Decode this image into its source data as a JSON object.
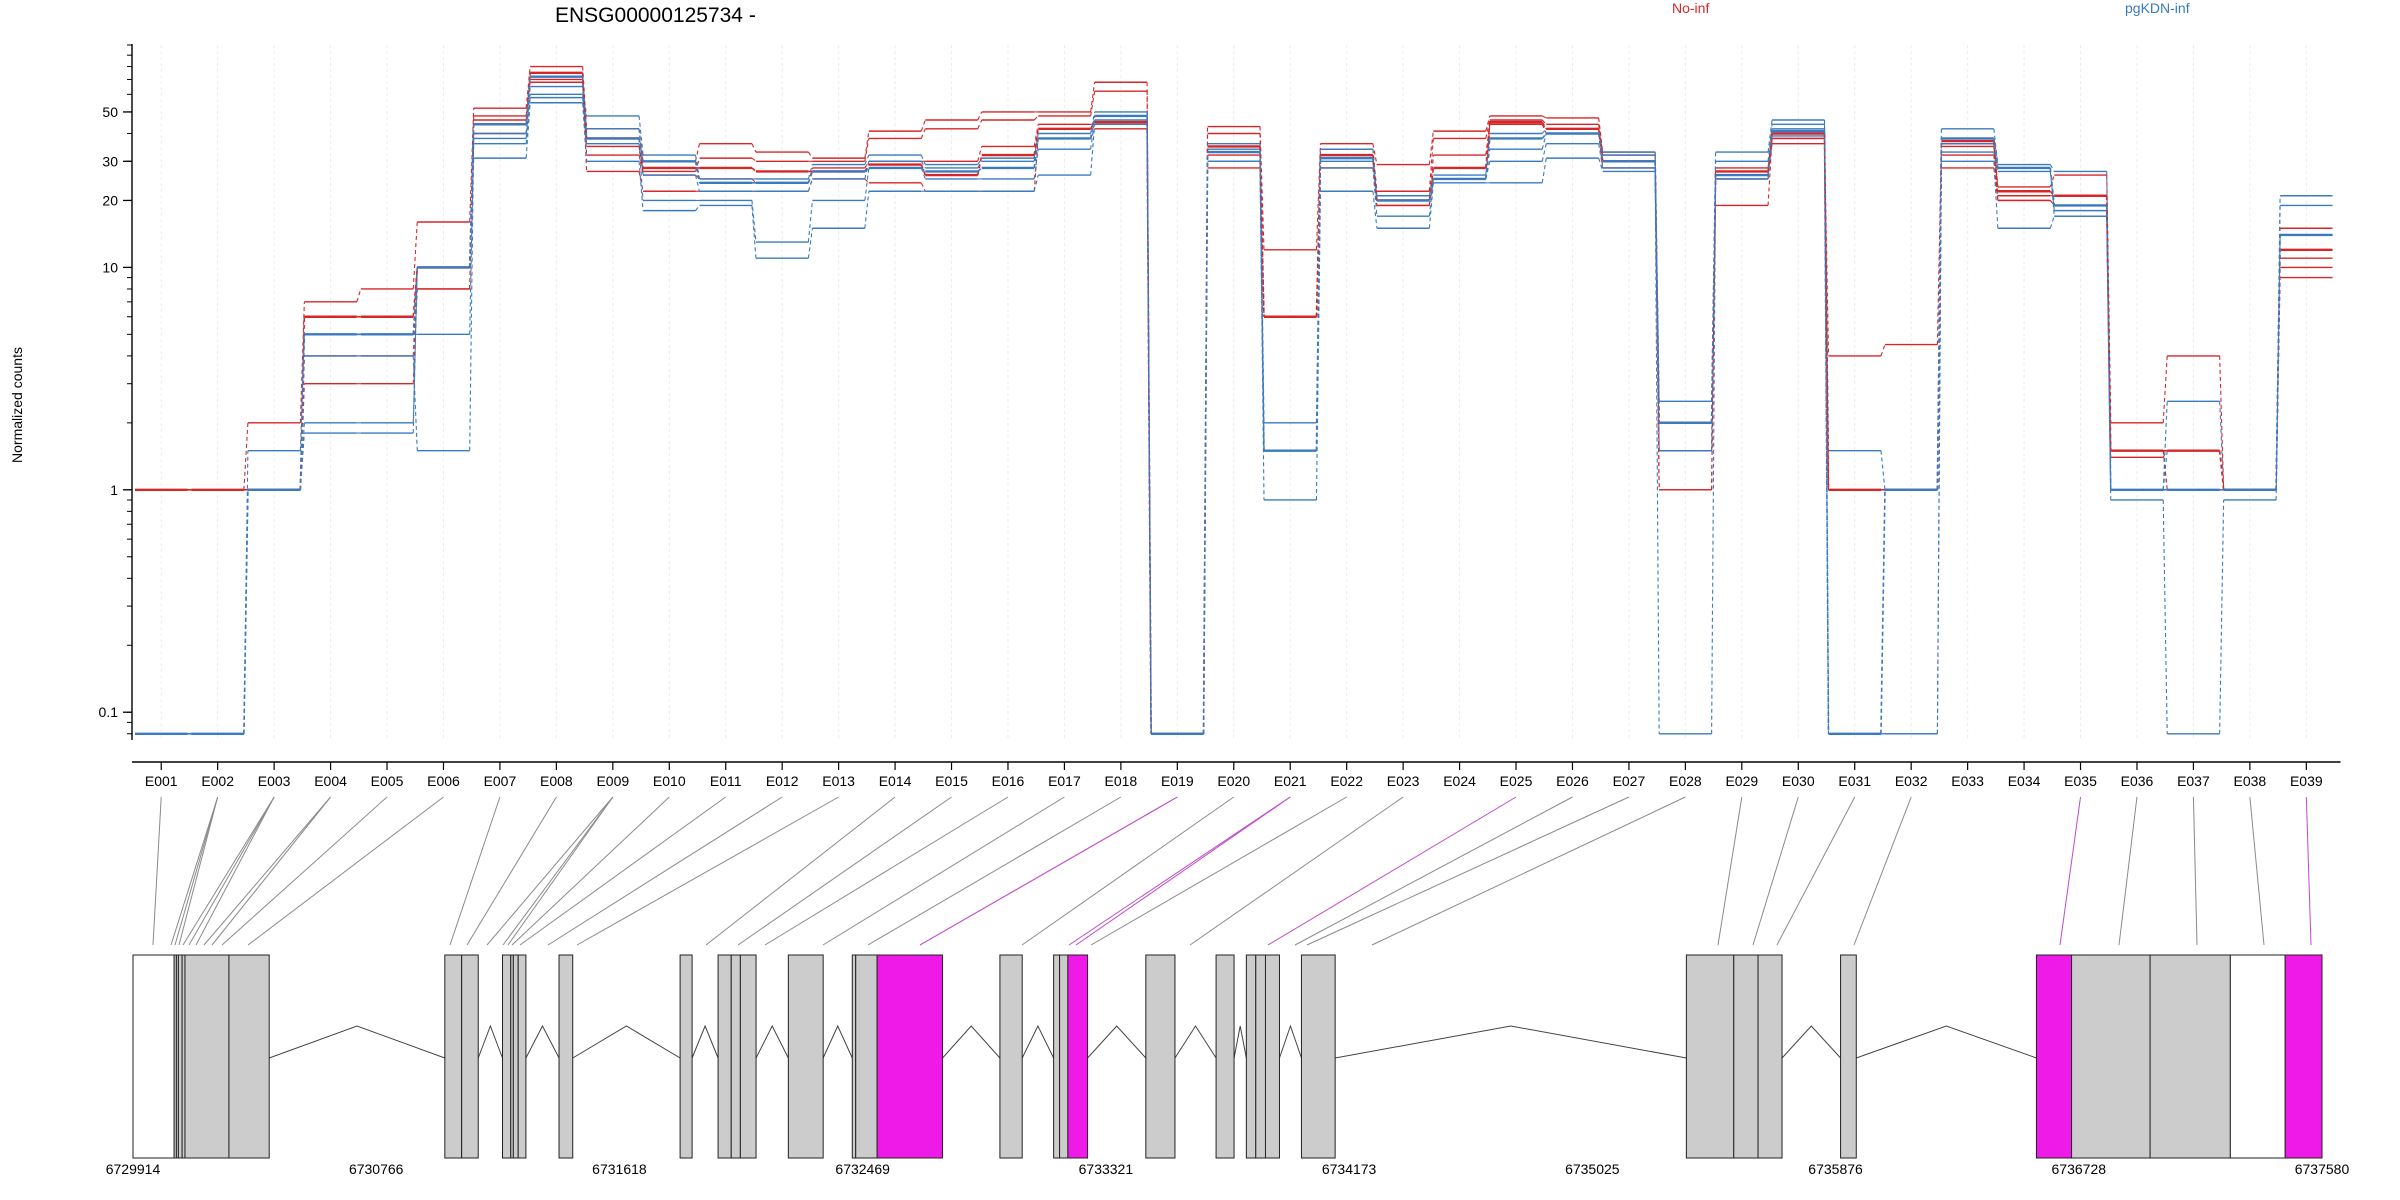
{
  "chart_data": {
    "type": "line",
    "title": "ENSG00000125734 -",
    "ylabel": "Normalized counts",
    "yscale": "log",
    "yticks": [
      {
        "value": 0.1,
        "label": "0.1"
      },
      {
        "value": 1,
        "label": "1"
      },
      {
        "value": 10,
        "label": "10"
      },
      {
        "value": 20,
        "label": "20"
      },
      {
        "value": 30,
        "label": "30"
      },
      {
        "value": 50,
        "label": "50"
      }
    ],
    "ylim": [
      0.075,
      100
    ],
    "categories": [
      "E001",
      "E002",
      "E003",
      "E004",
      "E005",
      "E006",
      "E007",
      "E008",
      "E009",
      "E010",
      "E011",
      "E012",
      "E013",
      "E014",
      "E015",
      "E016",
      "E017",
      "E018",
      "E019",
      "E020",
      "E021",
      "E022",
      "E023",
      "E024",
      "E025",
      "E026",
      "E027",
      "E028",
      "E029",
      "E030",
      "E031",
      "E032",
      "E033",
      "E034",
      "E035",
      "E036",
      "E037",
      "E038",
      "E039"
    ],
    "legend": [
      {
        "name": "No-inf",
        "color": "#d62728"
      },
      {
        "name": "pgKDN-inf",
        "color": "#3a7bbf"
      }
    ],
    "series": [
      {
        "group": "No-inf",
        "kind": "mean",
        "values": [
          1,
          1,
          1,
          6,
          6,
          10,
          44,
          75,
          38,
          28,
          28,
          27,
          27,
          29,
          26,
          32,
          42,
          45,
          0.08,
          35,
          6,
          32,
          20,
          28,
          45,
          42,
          30,
          2,
          27,
          40,
          1,
          1,
          37,
          22,
          21,
          1.5,
          1.5,
          1,
          12
        ]
      },
      {
        "group": "No-inf",
        "kind": "replicate",
        "values": [
          1,
          1,
          2,
          7,
          8,
          16,
          52,
          80,
          42,
          30,
          36,
          33,
          31,
          41,
          46,
          50,
          50,
          68,
          0.08,
          43,
          12,
          36,
          29,
          41,
          48,
          47,
          33,
          1.5,
          19,
          38,
          4,
          4.5,
          36,
          23,
          26,
          2,
          4,
          1,
          15
        ]
      },
      {
        "group": "No-inf",
        "kind": "replicate",
        "values": [
          1,
          1,
          1,
          5,
          5,
          8,
          48,
          72,
          35,
          27,
          31,
          30,
          30,
          38,
          42,
          46,
          48,
          62,
          0.08,
          40,
          6,
          34,
          22,
          38,
          46,
          44,
          32,
          1.5,
          25,
          38,
          1,
          1,
          35,
          21,
          21,
          1.4,
          1.5,
          1,
          11
        ]
      },
      {
        "group": "No-inf",
        "kind": "replicate",
        "values": [
          1,
          1,
          1,
          4,
          4,
          10,
          46,
          70,
          32,
          26,
          25,
          24,
          28,
          30,
          30,
          35,
          44,
          44,
          0.08,
          32,
          6,
          32,
          19,
          32,
          44,
          42,
          30,
          1,
          28,
          40,
          1,
          1,
          32,
          20,
          19,
          1.5,
          1,
          1,
          10
        ]
      },
      {
        "group": "No-inf",
        "kind": "replicate",
        "values": [
          1,
          1,
          1,
          3,
          3,
          8,
          40,
          68,
          27,
          22,
          22,
          22,
          25,
          24,
          22,
          22,
          38,
          42,
          0.08,
          28,
          6,
          28,
          19,
          25,
          44,
          40,
          28,
          1,
          26,
          36,
          1,
          1,
          28,
          20,
          19,
          1.5,
          1,
          1,
          9
        ]
      },
      {
        "group": "pgKDN-inf",
        "kind": "mean",
        "values": [
          0.08,
          0.08,
          1,
          5,
          5,
          10,
          44,
          72,
          38,
          30,
          24,
          24,
          27,
          28,
          27,
          28,
          38,
          48,
          0.08,
          33,
          1.5,
          31,
          20,
          25,
          38,
          40,
          30,
          2,
          26,
          41,
          0.08,
          1,
          38,
          28,
          19,
          1,
          1,
          1,
          14
        ]
      },
      {
        "group": "pgKDN-inf",
        "kind": "replicate",
        "values": [
          0.08,
          0.08,
          1.5,
          5,
          5,
          5,
          40,
          65,
          48,
          32,
          25,
          25,
          29,
          32,
          29,
          31,
          40,
          50,
          0.08,
          36,
          2,
          34,
          21,
          26,
          40,
          42,
          33,
          2.5,
          33,
          46,
          1.5,
          1,
          42,
          29,
          27,
          1,
          2.5,
          1,
          21
        ]
      },
      {
        "group": "pgKDN-inf",
        "kind": "replicate",
        "values": [
          0.08,
          0.08,
          1,
          4,
          4,
          1.5,
          38,
          60,
          42,
          26,
          22,
          22,
          25,
          30,
          28,
          30,
          38,
          48,
          0.08,
          34,
          1.5,
          30,
          20,
          25,
          34,
          40,
          32,
          2,
          30,
          44,
          0.08,
          1,
          36,
          28,
          17,
          1,
          1.5,
          1,
          19
        ]
      },
      {
        "group": "pgKDN-inf",
        "kind": "replicate",
        "values": [
          0.08,
          0.08,
          1,
          2,
          2,
          10,
          36,
          58,
          36,
          20,
          20,
          13,
          20,
          28,
          25,
          25,
          34,
          46,
          0.08,
          30,
          1.5,
          28,
          17,
          25,
          30,
          36,
          28,
          1.5,
          25,
          42,
          0.08,
          0.08,
          33,
          27,
          18,
          1,
          1,
          1,
          14
        ]
      },
      {
        "group": "pgKDN-inf",
        "kind": "replicate",
        "values": [
          0.08,
          0.08,
          1,
          1.8,
          1.8,
          10,
          31,
          55,
          30,
          18,
          19,
          11,
          15,
          22,
          22,
          22,
          26,
          44,
          0.08,
          30,
          0.9,
          22,
          15,
          24,
          24,
          31,
          27,
          0.08,
          25,
          39,
          0.08,
          0.08,
          30,
          15,
          17,
          0.9,
          0.08,
          0.9,
          14
        ]
      }
    ],
    "gene_model": {
      "coordinate_ticks": [
        "6729914",
        "6730766",
        "6731618",
        "6732469",
        "6733321",
        "6734173",
        "6735025",
        "6735876",
        "6736728",
        "6737580"
      ],
      "coordinate_range": [
        6729914,
        6737580
      ],
      "highlight_color": "#f01ae8",
      "exon_color": "#cccccc",
      "highlighted_exons": [
        "E019",
        "E021",
        "E025",
        "E035",
        "E039"
      ]
    }
  }
}
